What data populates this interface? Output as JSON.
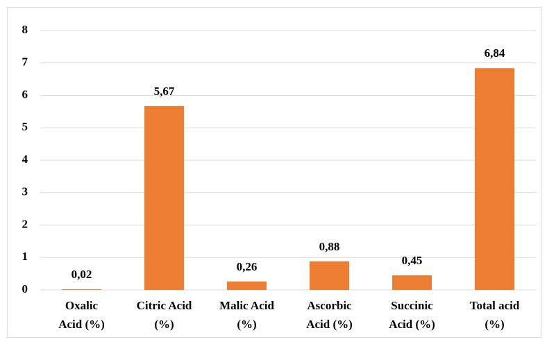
{
  "chart_data": {
    "type": "bar",
    "categories": [
      [
        "Oxalic",
        "Acid (%)"
      ],
      [
        "Citric Acid",
        "(%)"
      ],
      [
        "Malic Acid",
        "(%)"
      ],
      [
        "Ascorbic",
        "Acid (%)"
      ],
      [
        "Succinic",
        "Acid (%)"
      ],
      [
        "Total acid",
        "(%)"
      ]
    ],
    "values": [
      0.02,
      5.67,
      0.26,
      0.88,
      0.45,
      6.84
    ],
    "value_labels": [
      "0,02",
      "5,67",
      "0,26",
      "0,88",
      "0,45",
      "6,84"
    ],
    "color": "#ed7d31",
    "ylim": [
      0,
      8
    ],
    "yticks": [
      0,
      1,
      2,
      3,
      4,
      5,
      6,
      7,
      8
    ],
    "grid": true
  }
}
